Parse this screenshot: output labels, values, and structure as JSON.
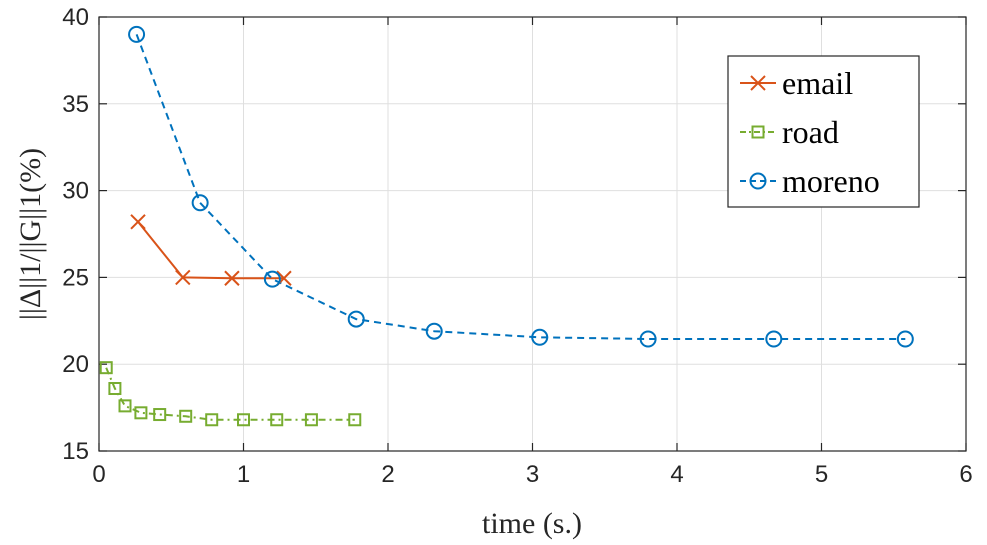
{
  "chart_data": {
    "type": "line",
    "title": "",
    "xlabel": "time (s.)",
    "ylabel": "||Δ||1/||G||1(%)",
    "xlim": [
      0,
      6
    ],
    "ylim": [
      15,
      40
    ],
    "xticks": [
      "0",
      "1",
      "2",
      "3",
      "4",
      "5",
      "6"
    ],
    "yticks": [
      "15",
      "20",
      "25",
      "30",
      "35",
      "40"
    ],
    "grid": true,
    "legend_position": "top-right",
    "series": [
      {
        "name": "email",
        "color": "#d95319",
        "marker": "x",
        "line": "solid",
        "x": [
          0.27,
          0.58,
          0.92,
          1.28
        ],
        "y": [
          28.2,
          25.0,
          24.95,
          24.95
        ]
      },
      {
        "name": "road",
        "color": "#77ac30",
        "marker": "square",
        "line": "dashdot",
        "x": [
          0.05,
          0.11,
          0.18,
          0.29,
          0.42,
          0.6,
          0.78,
          1.0,
          1.23,
          1.47,
          1.77
        ],
        "y": [
          19.8,
          18.6,
          17.6,
          17.2,
          17.1,
          17.0,
          16.8,
          16.8,
          16.8,
          16.8,
          16.8
        ]
      },
      {
        "name": "moreno",
        "color": "#0072bd",
        "marker": "circle",
        "line": "dashed",
        "x": [
          0.26,
          0.7,
          1.2,
          1.78,
          2.32,
          3.05,
          3.8,
          4.67,
          5.58
        ],
        "y": [
          39.0,
          29.3,
          24.9,
          22.6,
          21.9,
          21.55,
          21.45,
          21.45,
          21.45
        ]
      }
    ]
  }
}
